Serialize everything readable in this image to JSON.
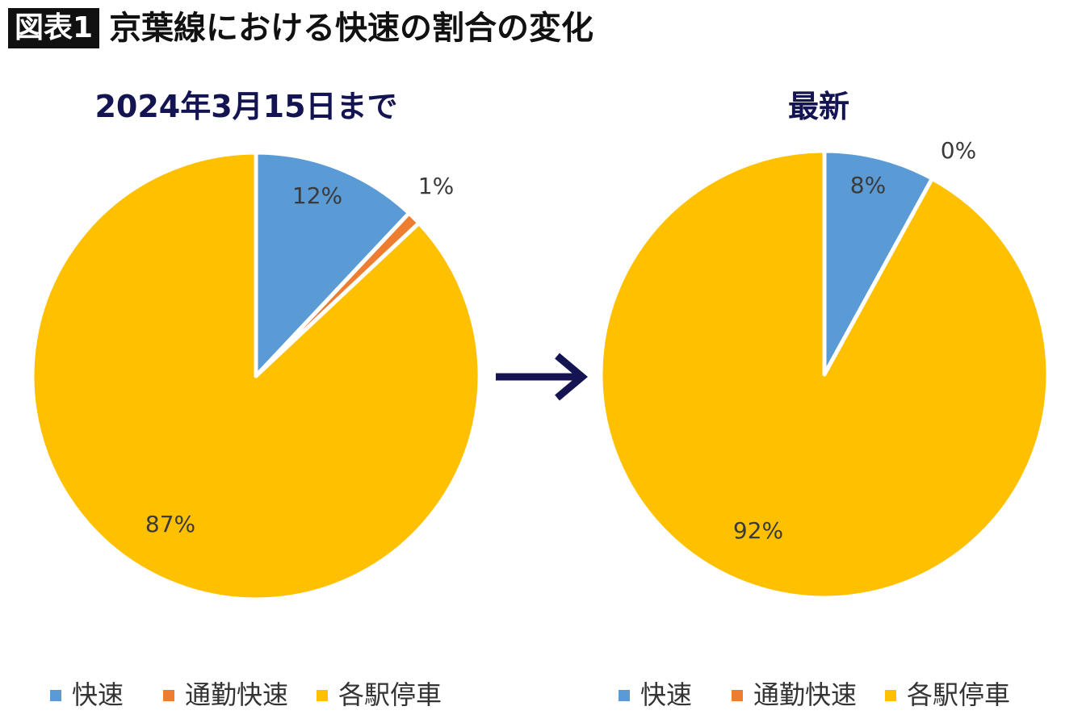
{
  "header": {
    "badge": "図表1",
    "title": "京葉線における快速の割合の変化"
  },
  "colors": {
    "rapid": "#5b9bd5",
    "commuter_rapid": "#ed7d31",
    "local": "#ffc000",
    "arrow": "#141452"
  },
  "chart_data": [
    {
      "type": "pie",
      "title": "2024年3月15日まで",
      "categories": [
        "快速",
        "通勤快速",
        "各駅停車"
      ],
      "values": [
        12,
        1,
        87
      ],
      "labels": [
        "12%",
        "1%",
        "87%"
      ],
      "colors": [
        "#5b9bd5",
        "#ed7d31",
        "#ffc000"
      ],
      "legend": [
        "快速",
        "通勤快速",
        "各駅停車"
      ],
      "legend_position": "bottom"
    },
    {
      "type": "pie",
      "title": "最新",
      "categories": [
        "快速",
        "通勤快速",
        "各駅停車"
      ],
      "values": [
        8,
        0,
        92
      ],
      "labels": [
        "8%",
        "0%",
        "92%"
      ],
      "colors": [
        "#5b9bd5",
        "#ed7d31",
        "#ffc000"
      ],
      "legend": [
        "快速",
        "通勤快速",
        "各駅停車"
      ],
      "legend_position": "bottom"
    }
  ]
}
